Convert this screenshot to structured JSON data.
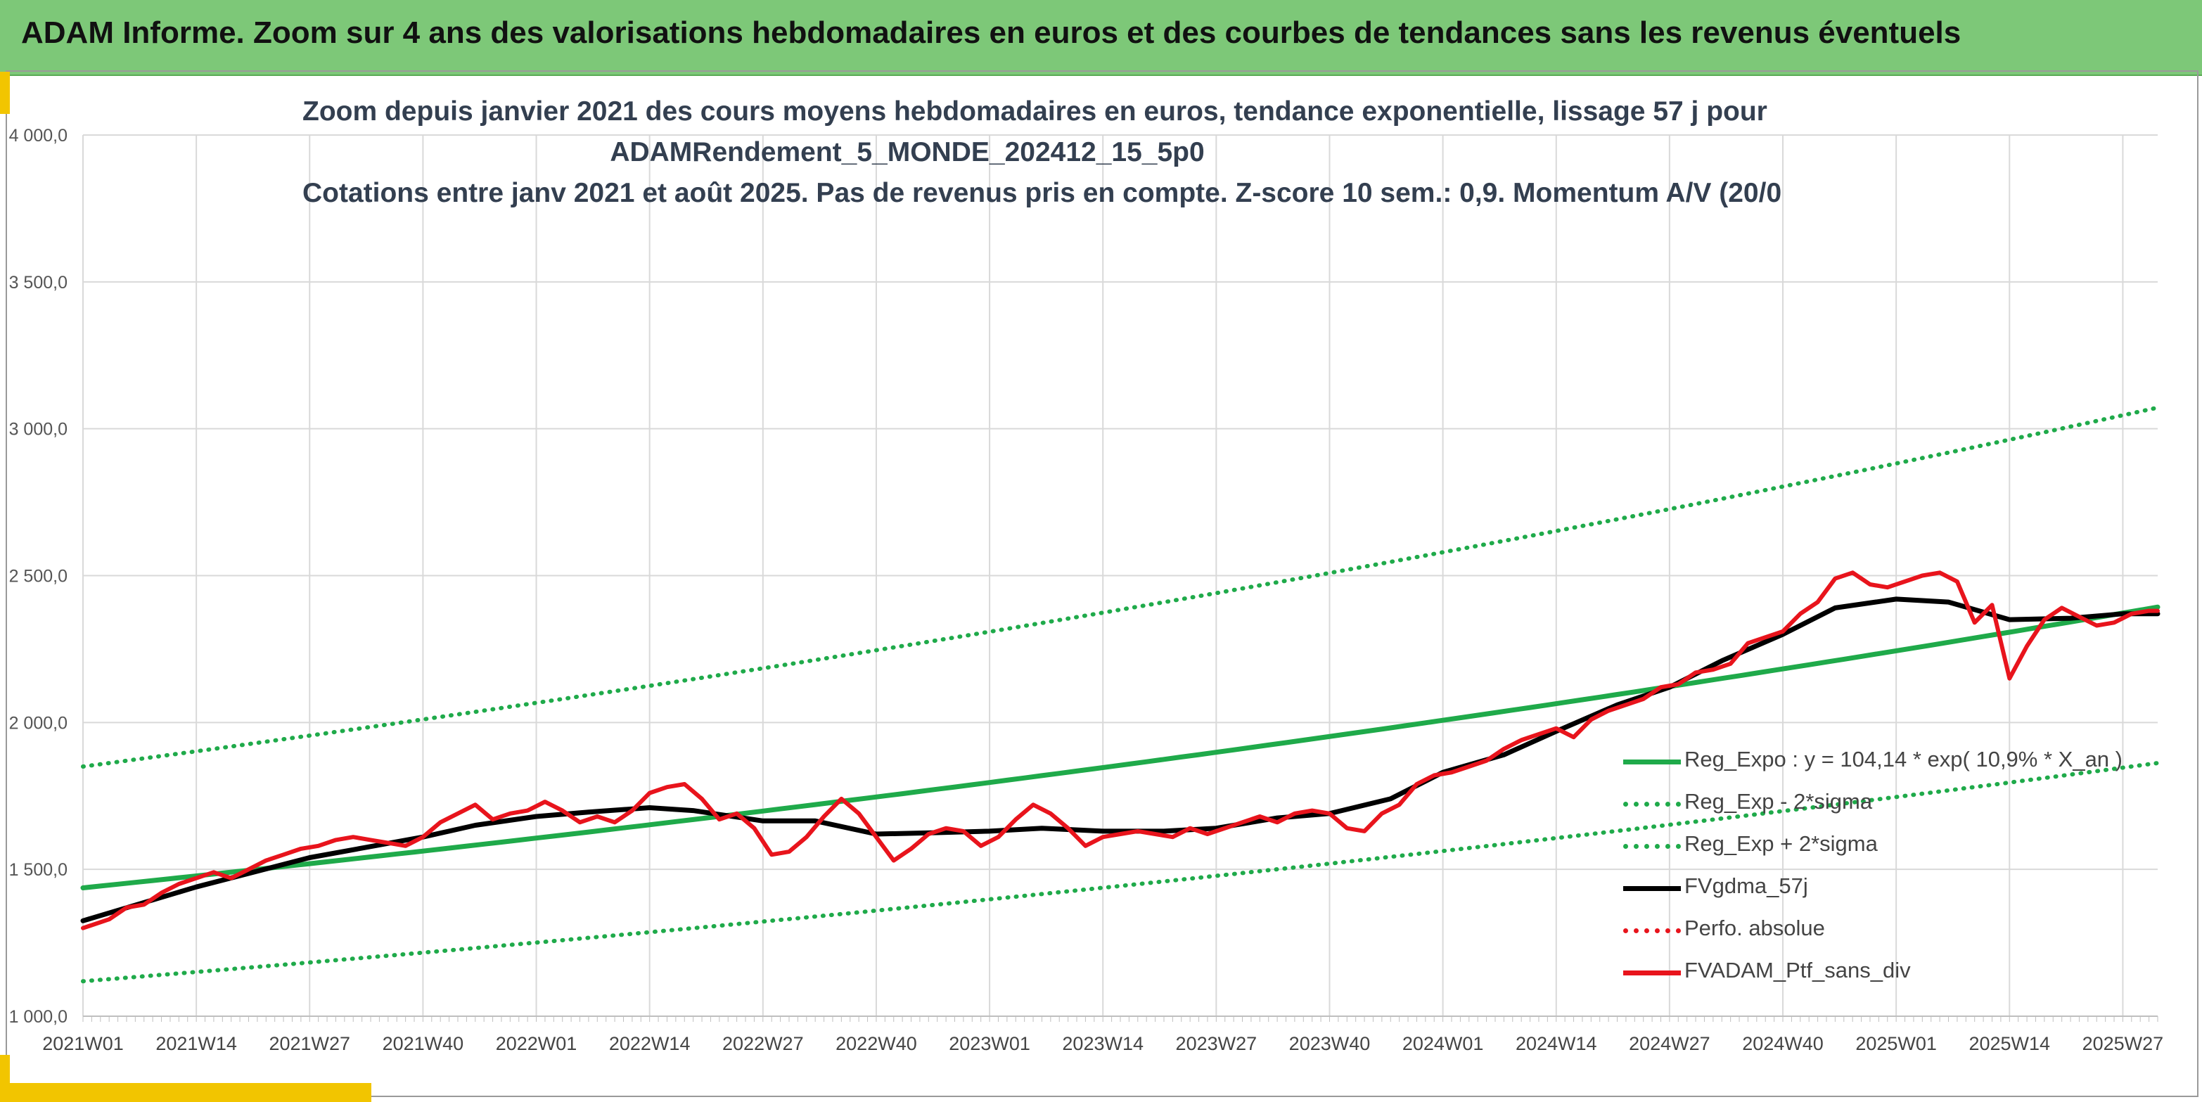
{
  "banner": {
    "title": "ADAM Informe. Zoom sur 4 ans des valorisations hebdomadaires en euros et des courbes de tendances sans les revenus éventuels"
  },
  "colors": {
    "banner_bg": "#7dc878",
    "trend_green": "#1faa4a",
    "smooth_black": "#000000",
    "price_red": "#e8141c",
    "accent_yellow": "#f2c500"
  },
  "chart_data": {
    "type": "line",
    "title": [
      "Zoom depuis janvier 2021 des cours moyens hebdomadaires en euros, tendance exponentielle, lissage 57 j pour",
      "ADAMRendement_5_MONDE_202412_15_5p0",
      "Cotations entre janv 2021 et août 2025. Pas de revenus pris en compte. Z-score 10 sem.: 0,9. Momentum A/V (20/0"
    ],
    "xlabel": "",
    "ylabel": "",
    "ylim": [
      1000,
      4000
    ],
    "yticks": [
      "1 000,0",
      "1 500,0",
      "2 000,0",
      "2 500,0",
      "3 000,0",
      "3 500,0",
      "4 000,0"
    ],
    "ytick_values": [
      1000,
      1500,
      2000,
      2500,
      3000,
      3500,
      4000
    ],
    "xrange_weeks": [
      0,
      238
    ],
    "xticks": [
      "2021W01",
      "2021W14",
      "2021W27",
      "2021W40",
      "2022W01",
      "2022W14",
      "2022W27",
      "2022W40",
      "2023W01",
      "2023W14",
      "2023W27",
      "2023W40",
      "2024W01",
      "2024W14",
      "2024W27",
      "2024W40",
      "2025W01",
      "2025W14",
      "2025W27"
    ],
    "xtick_weeks": [
      0,
      13,
      26,
      39,
      52,
      65,
      78,
      91,
      104,
      117,
      130,
      143,
      156,
      169,
      182,
      195,
      208,
      221,
      234
    ],
    "grid": true,
    "legend_position": "bottom-right",
    "series": [
      {
        "name": "Reg_Expo : y = 104,14 * exp( 10,9% * X_an )",
        "style": "solid",
        "color": "#1faa4a",
        "x": [
          0,
          238
        ],
        "y": [
          1437,
          2393
        ],
        "exponential": true
      },
      {
        "name": "Reg_Exp - 2*sigma",
        "style": "dotted",
        "color": "#1faa4a",
        "x": [
          0,
          238
        ],
        "y": [
          1119,
          1862
        ],
        "exponential": true
      },
      {
        "name": "Reg_Exp + 2*sigma",
        "style": "dotted",
        "color": "#1faa4a",
        "x": [
          0,
          238
        ],
        "y": [
          1850,
          3072
        ],
        "exponential": true
      },
      {
        "name": "FVgdma_57j",
        "style": "solid",
        "color": "#000000",
        "x": [
          0,
          13,
          26,
          39,
          45,
          52,
          58,
          65,
          70,
          78,
          84,
          91,
          98,
          104,
          110,
          117,
          124,
          130,
          137,
          143,
          150,
          156,
          163,
          169,
          176,
          182,
          188,
          195,
          201,
          208,
          214,
          221,
          228,
          234,
          238
        ],
        "y": [
          1325,
          1440,
          1540,
          1610,
          1650,
          1680,
          1695,
          1710,
          1700,
          1665,
          1665,
          1620,
          1625,
          1630,
          1640,
          1630,
          1630,
          1640,
          1675,
          1690,
          1740,
          1830,
          1890,
          1970,
          2060,
          2120,
          2210,
          2300,
          2390,
          2420,
          2410,
          2350,
          2355,
          2370,
          2370
        ]
      },
      {
        "name": "Perfo. absolue",
        "style": "dotted",
        "color": "#e8141c",
        "x": [],
        "y": []
      },
      {
        "name": "FVADAM_Ptf_sans_div",
        "style": "solid",
        "color": "#e8141c",
        "x": [
          0,
          3,
          5,
          7,
          9,
          11,
          13,
          15,
          17,
          19,
          21,
          23,
          25,
          27,
          29,
          31,
          33,
          35,
          37,
          39,
          41,
          43,
          45,
          47,
          49,
          51,
          53,
          55,
          57,
          59,
          61,
          63,
          65,
          67,
          69,
          71,
          73,
          75,
          77,
          79,
          81,
          83,
          85,
          87,
          89,
          91,
          93,
          95,
          97,
          99,
          101,
          103,
          105,
          107,
          109,
          111,
          113,
          115,
          117,
          119,
          121,
          123,
          125,
          127,
          129,
          131,
          133,
          135,
          137,
          139,
          141,
          143,
          145,
          147,
          149,
          151,
          153,
          155,
          157,
          159,
          161,
          163,
          165,
          167,
          169,
          171,
          173,
          175,
          177,
          179,
          181,
          183,
          185,
          187,
          189,
          191,
          193,
          195,
          197,
          199,
          201,
          203,
          205,
          207,
          209,
          211,
          213,
          215,
          217,
          219,
          221,
          223,
          225,
          227,
          229,
          231,
          233,
          235,
          237,
          238
        ],
        "y": [
          1300,
          1330,
          1370,
          1380,
          1420,
          1450,
          1470,
          1490,
          1470,
          1500,
          1530,
          1550,
          1570,
          1580,
          1600,
          1610,
          1600,
          1590,
          1580,
          1610,
          1660,
          1690,
          1720,
          1670,
          1690,
          1700,
          1730,
          1700,
          1660,
          1680,
          1660,
          1700,
          1760,
          1780,
          1790,
          1740,
          1670,
          1690,
          1640,
          1550,
          1560,
          1610,
          1680,
          1740,
          1690,
          1610,
          1530,
          1570,
          1620,
          1640,
          1630,
          1580,
          1610,
          1670,
          1720,
          1690,
          1640,
          1580,
          1610,
          1620,
          1630,
          1620,
          1610,
          1640,
          1620,
          1640,
          1660,
          1680,
          1660,
          1690,
          1700,
          1690,
          1640,
          1630,
          1690,
          1720,
          1790,
          1820,
          1830,
          1850,
          1870,
          1910,
          1940,
          1960,
          1980,
          1950,
          2010,
          2040,
          2060,
          2080,
          2120,
          2130,
          2170,
          2180,
          2200,
          2270,
          2290,
          2310,
          2370,
          2410,
          2490,
          2510,
          2470,
          2460,
          2480,
          2500,
          2510,
          2480,
          2340,
          2400,
          2150,
          2260,
          2350,
          2390,
          2360,
          2330,
          2340,
          2370,
          2380,
          2380
        ]
      }
    ]
  }
}
